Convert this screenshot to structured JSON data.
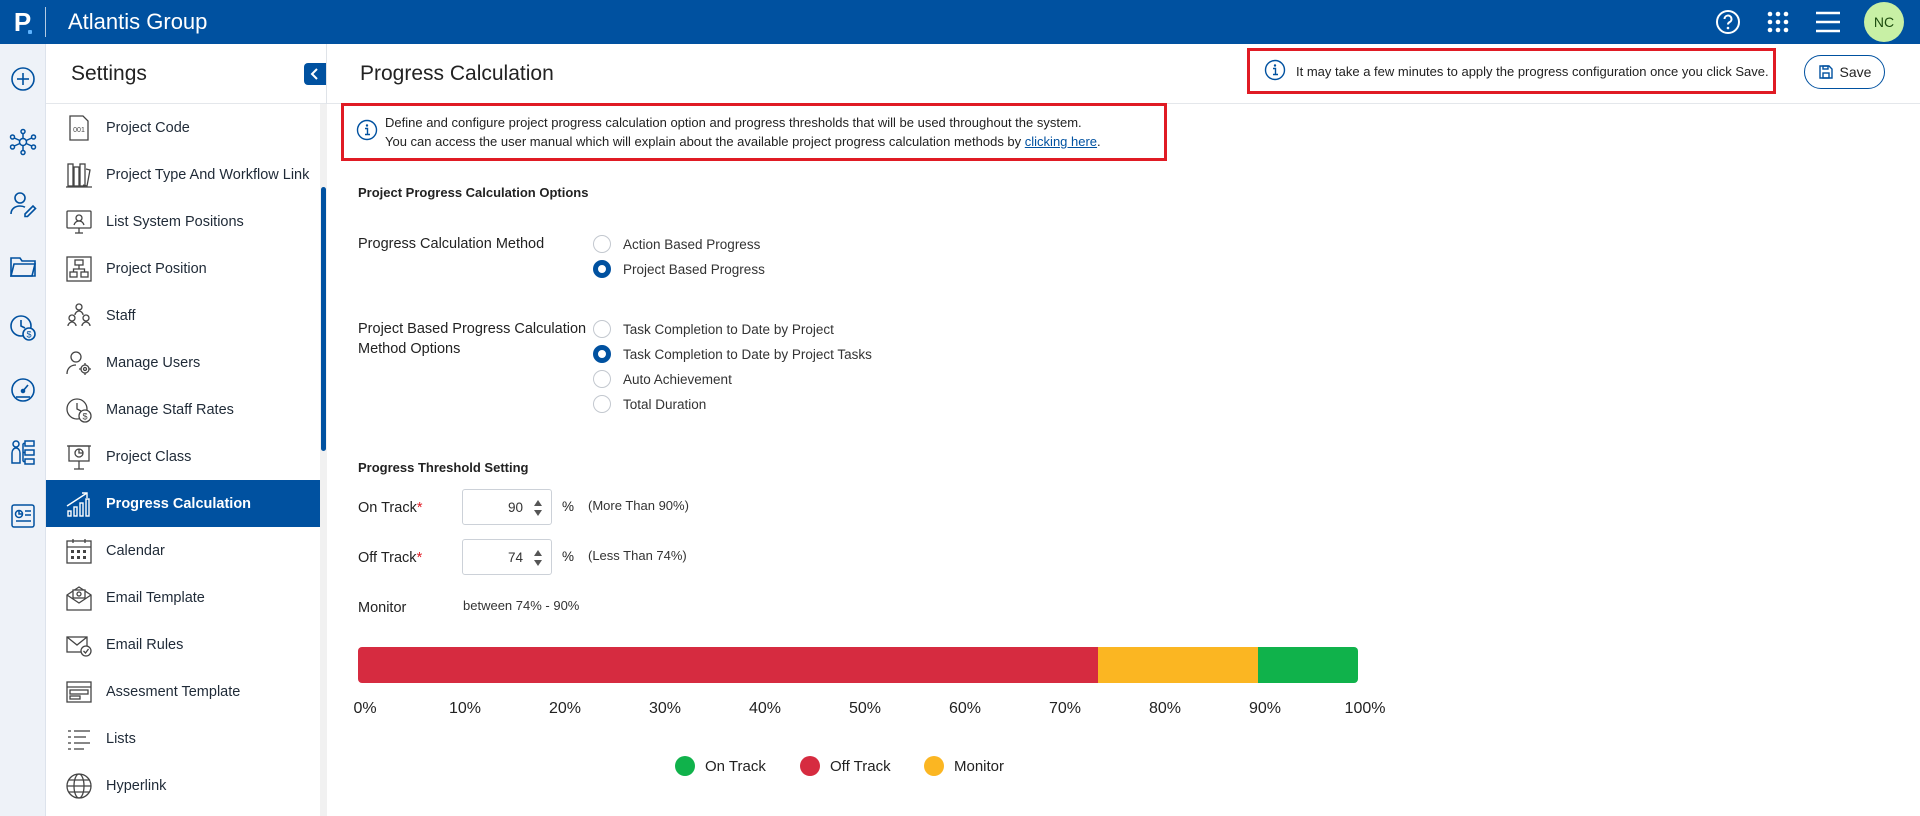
{
  "app": {
    "logo_letter": "P",
    "title": "Atlantis Group"
  },
  "topbar": {
    "help_icon": "help-circle-icon",
    "apps_icon": "grid-icon",
    "menu_icon": "hamburger-icon",
    "avatar_initials": "NC"
  },
  "rail": {
    "icons": [
      "plus-circle-icon",
      "network-icon",
      "user-edit-icon",
      "folder-icon",
      "time-money-icon",
      "dashboard-gauge-icon",
      "org-chart-icon",
      "report-icon"
    ]
  },
  "sidebar": {
    "title": "Settings",
    "items": [
      {
        "label": "Project Code",
        "icon": "code-card-icon"
      },
      {
        "label": "Project Type And Workflow Link",
        "icon": "books-icon"
      },
      {
        "label": "List System Positions",
        "icon": "monitor-user-icon"
      },
      {
        "label": "Project Position",
        "icon": "hierarchy-icon"
      },
      {
        "label": "Staff",
        "icon": "staff-icon"
      },
      {
        "label": "Manage Users",
        "icon": "user-gear-icon"
      },
      {
        "label": "Manage Staff Rates",
        "icon": "clock-dollar-icon"
      },
      {
        "label": "Project Class",
        "icon": "presentation-icon"
      },
      {
        "label": "Progress Calculation",
        "icon": "progress-chart-icon",
        "active": true
      },
      {
        "label": "Calendar",
        "icon": "calendar-icon"
      },
      {
        "label": "Email Template",
        "icon": "email-template-icon"
      },
      {
        "label": "Email Rules",
        "icon": "email-rules-icon"
      },
      {
        "label": "Assesment Template",
        "icon": "form-template-icon"
      },
      {
        "label": "Lists",
        "icon": "list-icon"
      },
      {
        "label": "Hyperlink",
        "icon": "globe-icon"
      }
    ]
  },
  "header": {
    "title": "Progress Calculation",
    "save_note": "It may take a few minutes to apply the progress configuration once you click Save.",
    "save_label": "Save"
  },
  "info": {
    "line1": "Define and configure project progress calculation option and progress thresholds that will be used throughout the system.",
    "line2_prefix": "You can access the user manual which will explain about the available project progress calculation methods by ",
    "link": "clicking here",
    "line2_suffix": "."
  },
  "options": {
    "section_title": "Project Progress Calculation Options",
    "method_label": "Progress Calculation Method",
    "methods": [
      {
        "label": "Action Based Progress",
        "selected": false
      },
      {
        "label": "Project Based Progress",
        "selected": true
      }
    ],
    "project_method_label_1": "Project Based Progress Calculation",
    "project_method_label_2": "Method Options",
    "project_methods": [
      {
        "label": "Task Completion to Date by Project",
        "selected": false
      },
      {
        "label": "Task Completion to Date by Project Tasks",
        "selected": true
      },
      {
        "label": "Auto Achievement",
        "selected": false
      },
      {
        "label": "Total Duration",
        "selected": false
      }
    ]
  },
  "threshold": {
    "section_title": "Progress Threshold Setting",
    "on_track_label": "On Track",
    "on_track_value": "90",
    "on_track_hint": "(More Than 90%)",
    "off_track_label": "Off Track",
    "off_track_value": "74",
    "off_track_hint": "(Less Than 74%)",
    "required_mark": "*",
    "percent_sign": "%",
    "monitor_label": "Monitor",
    "monitor_text": "between 74% - 90%"
  },
  "chart_data": {
    "type": "bar",
    "segments": [
      {
        "name": "Off Track",
        "from": 0,
        "to": 74,
        "color": "#d62b40"
      },
      {
        "name": "Monitor",
        "from": 74,
        "to": 90,
        "color": "#fbb622"
      },
      {
        "name": "On Track",
        "from": 90,
        "to": 100,
        "color": "#10b24b"
      }
    ],
    "ticks": [
      "0%",
      "10%",
      "20%",
      "30%",
      "40%",
      "50%",
      "60%",
      "70%",
      "80%",
      "90%",
      "100%"
    ],
    "legend": [
      {
        "name": "On Track",
        "color": "#10b24b"
      },
      {
        "name": "Off Track",
        "color": "#d62b40"
      },
      {
        "name": "Monitor",
        "color": "#fbb622"
      }
    ]
  },
  "colors": {
    "brand": "#0051a0",
    "highlight_border": "#e01b24"
  }
}
